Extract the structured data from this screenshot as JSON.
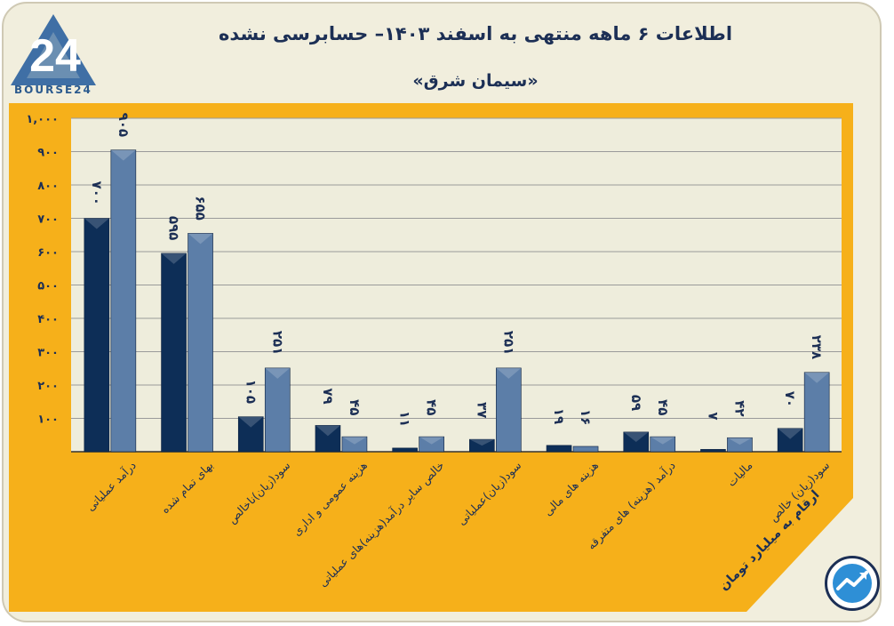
{
  "header": {
    "title": "اطلاعات ۶ ماهه منتهی به اسفند ۱۴۰۳– حسابرسی نشده",
    "subtitle": "«سیمان شرق»"
  },
  "logo": {
    "mark": "24",
    "text": "BOURSE24",
    "icon": "bourse24-logo"
  },
  "note": {
    "unit": "ارقام به میلیارد تومان"
  },
  "badge": {
    "icon": "chart-trend-icon"
  },
  "colors": {
    "series_dark": "#0d2e57",
    "series_light": "#5c7ea8",
    "frame": "#f6b01a",
    "plot_bg": "#eeeddc",
    "text": "#1c2f55"
  },
  "chart_data": {
    "type": "bar",
    "categories": [
      "درآمد عملیاتی",
      "بهای تمام شده",
      "سود(زیان)ناخالص",
      "هزینه عمومی و اداری",
      "خالص سایر درآمد(هزینه)های عملیاتی",
      "سود(زیان)عملیاتی",
      "هزینه های مالی",
      "درآمد (هزینه) های متفرقه",
      "مالیات",
      "سود(زیان) خالص"
    ],
    "series": [
      {
        "values": [
          700,
          595,
          105,
          79,
          11,
          37,
          19,
          59,
          7,
          70
        ],
        "labels": [
          "۷۰۰",
          "۵۹۵",
          "۱۰۵",
          "۷۹",
          "۱۱",
          "۳۷",
          "۱۹",
          "۵۹",
          "۷",
          "۷۰"
        ]
      },
      {
        "values": [
          905,
          655,
          251,
          45,
          45,
          251,
          16,
          45,
          42,
          238
        ],
        "labels": [
          "۹۰۵",
          "۶۵۵",
          "۲۵۱",
          "۴۵",
          "۴۵",
          "۲۵۱",
          "۱۶",
          "۴۵",
          "۴۲",
          "۲۳۸"
        ]
      }
    ],
    "yticks": [
      100,
      200,
      300,
      400,
      500,
      600,
      700,
      800,
      900,
      1000
    ],
    "ytick_labels": [
      "۱۰۰",
      "۲۰۰",
      "۳۰۰",
      "۴۰۰",
      "۵۰۰",
      "۶۰۰",
      "۷۰۰",
      "۸۰۰",
      "۹۰۰",
      "۱,۰۰۰"
    ],
    "ylim": [
      0,
      1000
    ],
    "grid": true,
    "title": "",
    "xlabel": "",
    "ylabel": ""
  }
}
